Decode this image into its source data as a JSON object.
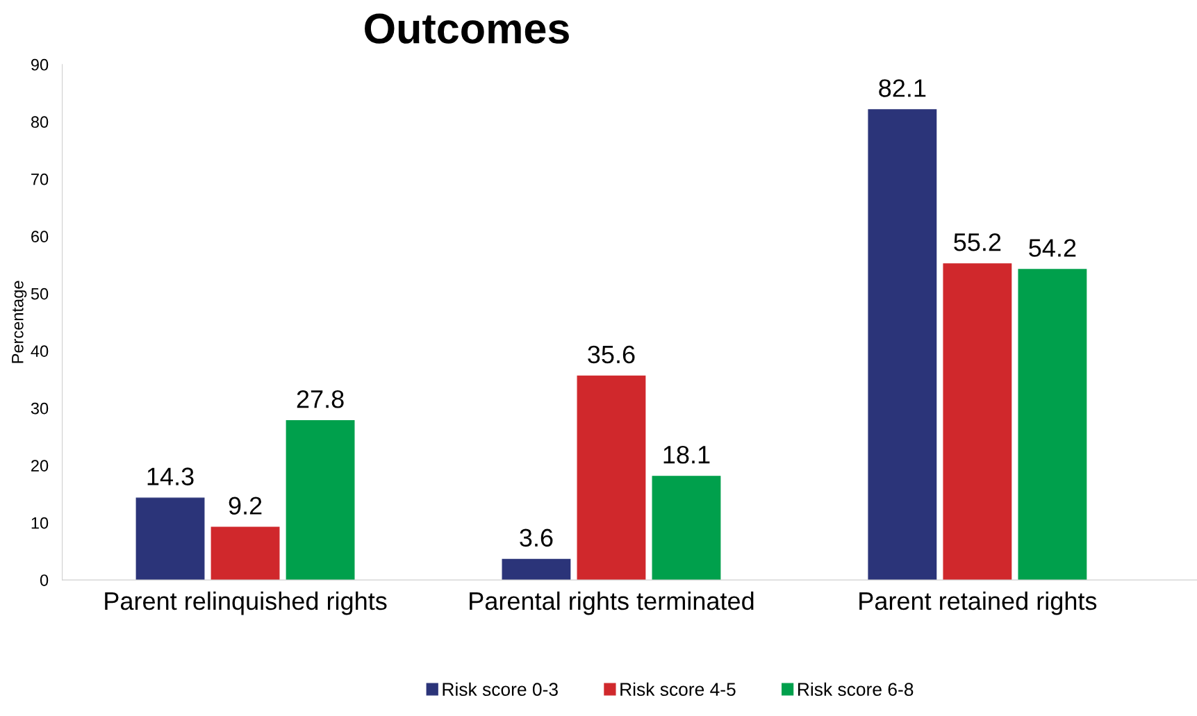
{
  "chart_data": {
    "type": "bar",
    "title": "Outcomes",
    "ylabel": "Percentage",
    "categories": [
      "Parent relinquished rights",
      "Parental rights terminated",
      "Parent retained rights"
    ],
    "series": [
      {
        "name": "Risk score 0-3",
        "color": "#2b3479",
        "values": [
          14.3,
          3.6,
          82.1
        ]
      },
      {
        "name": "Risk score 4-5",
        "color": "#d0282c",
        "values": [
          9.2,
          35.6,
          55.2
        ]
      },
      {
        "name": "Risk score 6-8",
        "color": "#00a04c",
        "values": [
          27.8,
          18.1,
          54.2
        ]
      }
    ],
    "ylim": [
      0,
      90
    ],
    "yticks": [
      0,
      10,
      20,
      30,
      40,
      50,
      60,
      70,
      80,
      90
    ],
    "data_labels": true,
    "legend": "bottom",
    "grid": false
  }
}
